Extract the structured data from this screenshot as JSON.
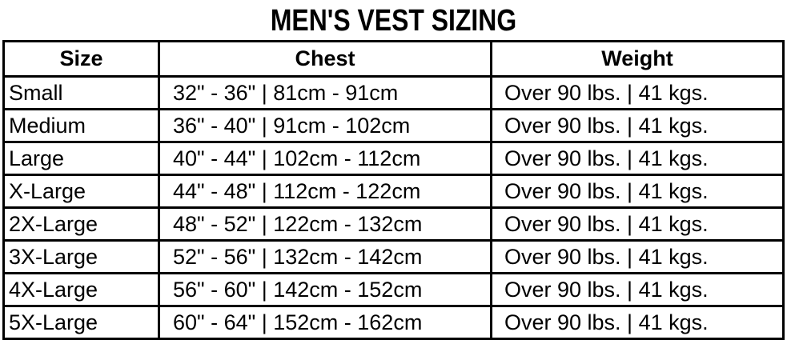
{
  "title": "MEN'S VEST SIZING",
  "table": {
    "headers": [
      "Size",
      "Chest",
      "Weight"
    ],
    "rows": [
      {
        "size": "Small",
        "chest": "32\" - 36\" | 81cm - 91cm",
        "weight": "Over 90 lbs. | 41 kgs."
      },
      {
        "size": "Medium",
        "chest": "36\" - 40\" | 91cm - 102cm",
        "weight": "Over 90 lbs. | 41 kgs."
      },
      {
        "size": "Large",
        "chest": "40\" - 44\" | 102cm - 112cm",
        "weight": "Over 90 lbs. | 41 kgs."
      },
      {
        "size": "X-Large",
        "chest": "44\" - 48\" | 112cm - 122cm",
        "weight": "Over 90 lbs. | 41 kgs."
      },
      {
        "size": "2X-Large",
        "chest": "48\" - 52\" | 122cm - 132cm",
        "weight": "Over 90 lbs. | 41 kgs."
      },
      {
        "size": "3X-Large",
        "chest": "52\" - 56\" | 132cm - 142cm",
        "weight": "Over 90 lbs. | 41 kgs."
      },
      {
        "size": "4X-Large",
        "chest": "56\" - 60\" | 142cm - 152cm",
        "weight": "Over 90 lbs. | 41 kgs."
      },
      {
        "size": "5X-Large",
        "chest": "60\" - 64\" | 152cm - 162cm",
        "weight": "Over 90 lbs. | 41 kgs."
      }
    ]
  },
  "colors": {
    "border": "#000000",
    "text": "#000000",
    "background": "#ffffff"
  }
}
